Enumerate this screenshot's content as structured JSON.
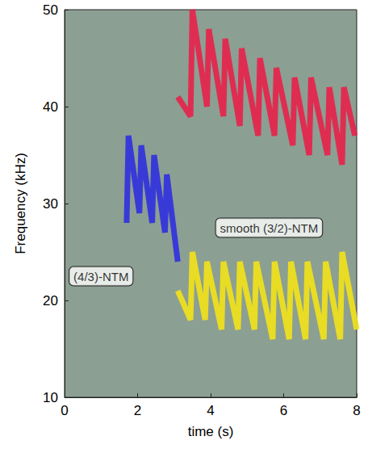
{
  "chart_data": {
    "type": "line",
    "x_label": "time (s)",
    "y_label": "Frequency (kHz)",
    "xlim": [
      0,
      8
    ],
    "ylim": [
      10,
      50
    ],
    "xticks": [
      0,
      2,
      4,
      6,
      8
    ],
    "yticks": [
      10,
      20,
      30,
      40,
      50
    ],
    "grid": false,
    "line_style": "solid",
    "series": [
      {
        "color": "#2f2fe0",
        "x": [
          1.7,
          1.75,
          2.05,
          2.1,
          2.4,
          2.45,
          2.75,
          2.8,
          3.1
        ],
        "values": [
          28,
          37,
          29,
          36,
          28,
          35,
          27,
          33,
          24
        ]
      },
      {
        "color": "#e8204a",
        "x": [
          3.1,
          3.45,
          3.5,
          3.9,
          3.95,
          4.35,
          4.4,
          4.8,
          4.85,
          5.3,
          5.35,
          5.75,
          5.8,
          6.25,
          6.3,
          6.7,
          6.75,
          7.2,
          7.25,
          7.6,
          7.65,
          7.95
        ],
        "values": [
          41,
          39,
          50,
          40,
          48,
          39,
          47,
          38,
          46,
          37,
          45,
          37,
          44,
          36,
          43,
          35,
          43,
          35,
          42,
          34,
          42,
          37
        ]
      },
      {
        "color": "#f2e21a",
        "x": [
          3.1,
          3.45,
          3.5,
          3.85,
          3.9,
          4.3,
          4.35,
          4.75,
          4.8,
          5.2,
          5.25,
          5.7,
          5.75,
          6.15,
          6.2,
          6.6,
          6.65,
          7.1,
          7.15,
          7.55,
          7.6,
          8.0
        ],
        "values": [
          21,
          18,
          25,
          18,
          24,
          17,
          24,
          17,
          24,
          17,
          24,
          16,
          24,
          16,
          24,
          16,
          24,
          16,
          24,
          16,
          25,
          17
        ]
      }
    ],
    "annotations": [
      {
        "text": "(4/3)-NTM",
        "x": 1.0,
        "y": 22.5
      },
      {
        "text": "smooth (3/2)-NTM",
        "x": 5.6,
        "y": 27.5
      }
    ]
  }
}
